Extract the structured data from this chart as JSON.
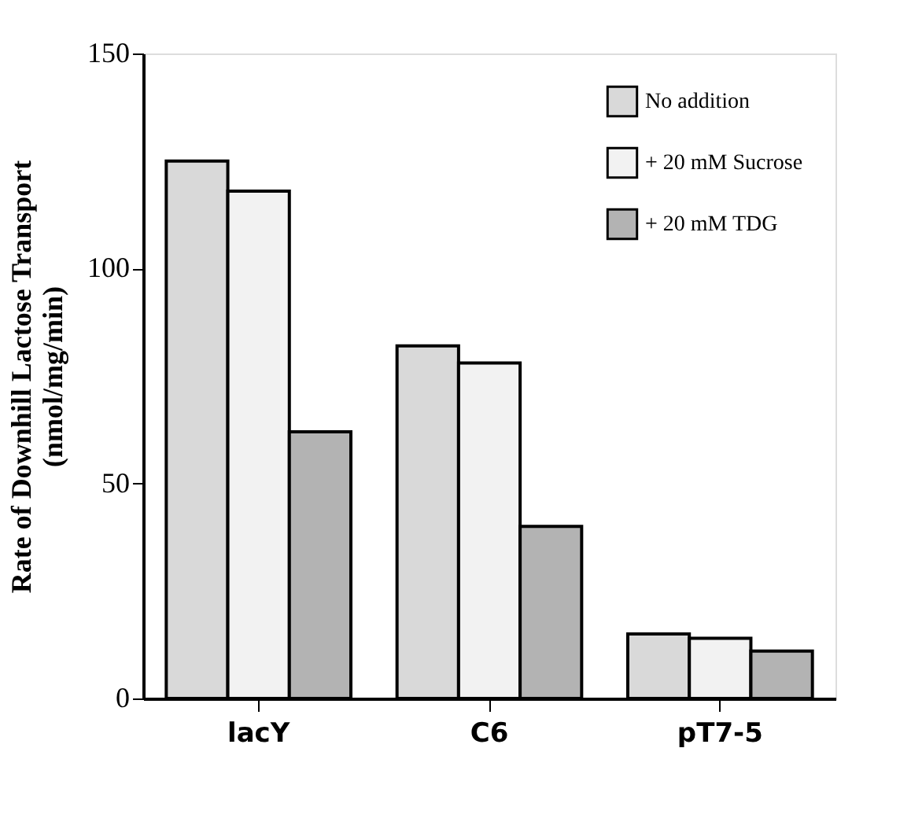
{
  "chart_data": {
    "type": "bar",
    "ylabel": "Rate of Downhill Lactose Transport\n(nmol/mg/min)",
    "categories": [
      "lacY",
      "C6",
      "pT7-5"
    ],
    "series": [
      {
        "name": "No addition",
        "color": "#d9d9d9",
        "values": [
          125,
          82,
          15
        ]
      },
      {
        "name": "+ 20 mM Sucrose",
        "color": "#f2f2f2",
        "values": [
          118,
          78,
          14
        ]
      },
      {
        "name": "+ 20 mM TDG",
        "color": "#b3b3b3",
        "values": [
          62,
          40,
          11
        ]
      }
    ],
    "ylim": [
      0,
      150
    ],
    "yticks": [
      0,
      50,
      100,
      150
    ],
    "grid": false,
    "legend": "top right"
  }
}
